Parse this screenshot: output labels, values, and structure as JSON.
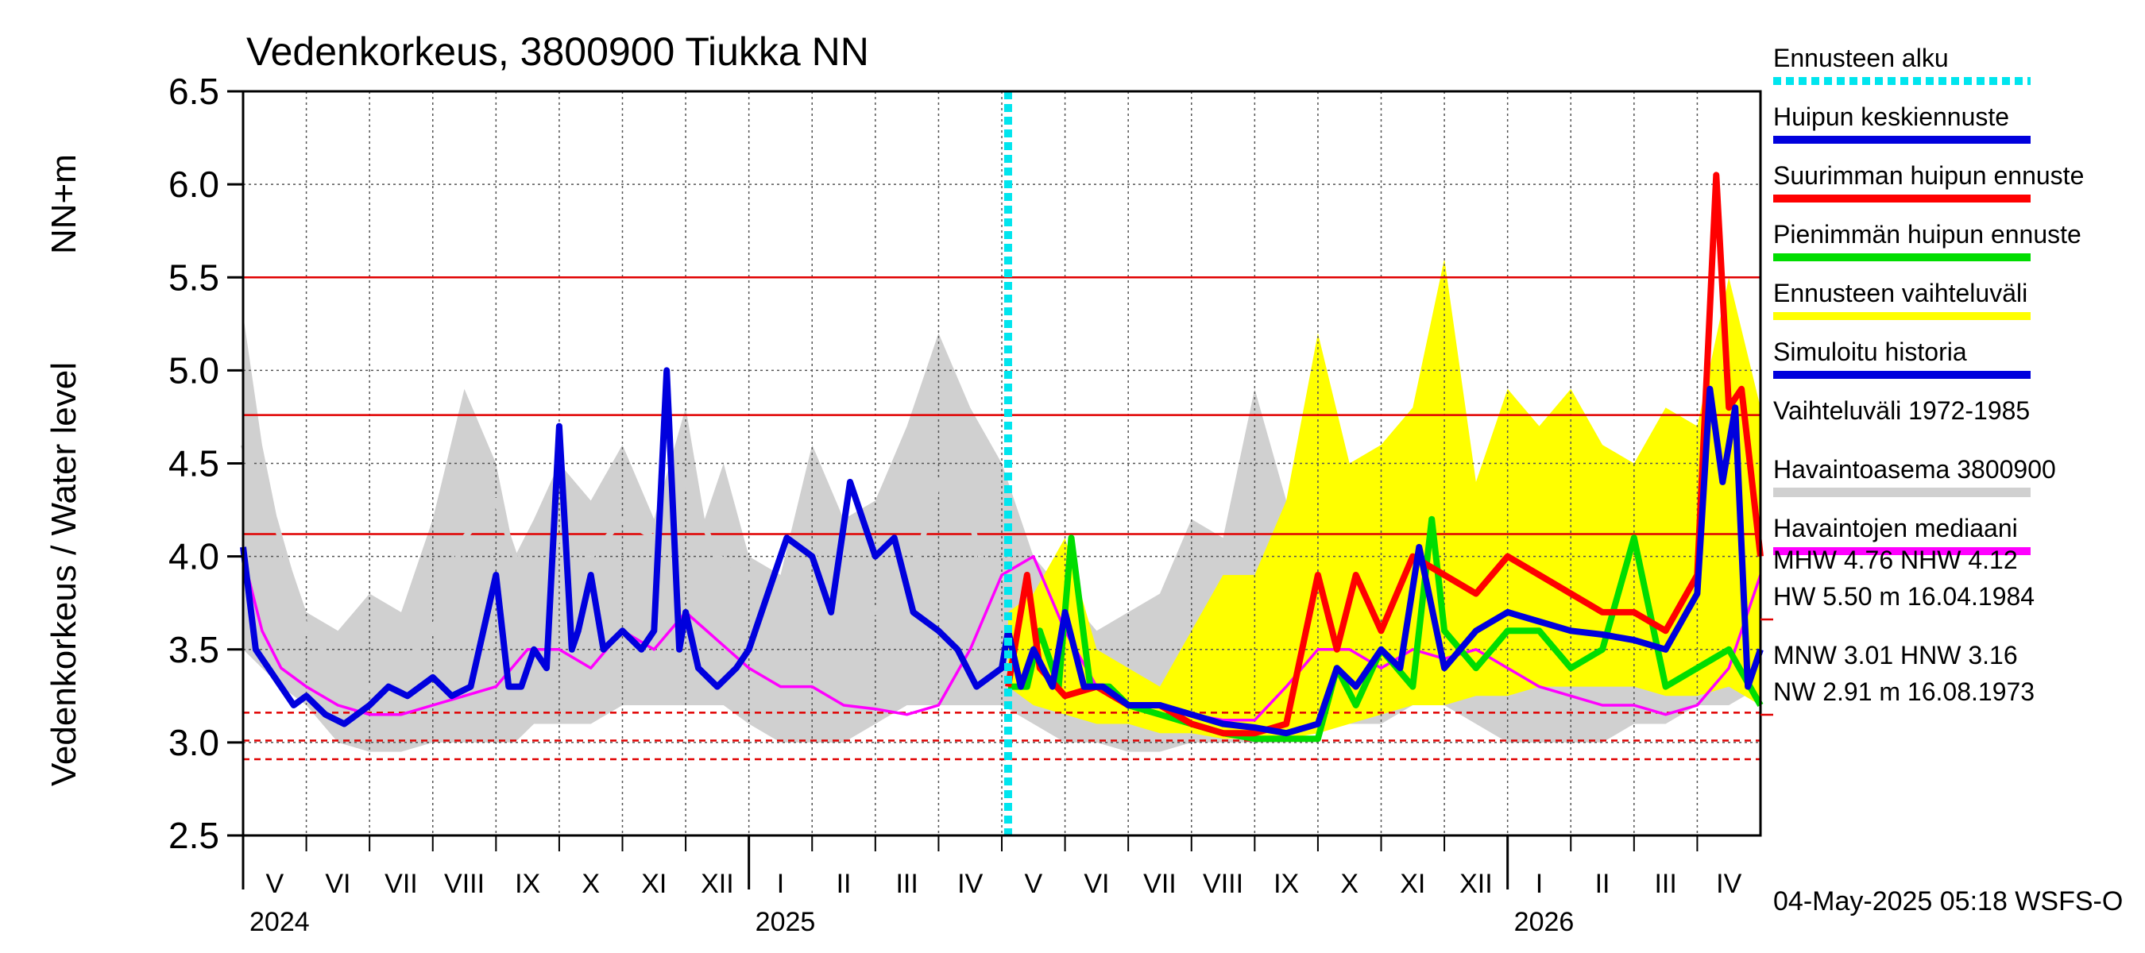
{
  "chart_data": {
    "type": "line",
    "title": "Vedenkorkeus, 3800900 Tiukka NN",
    "ylabel": "Vedenkorkeus / Water level",
    "yunit": "NN+m",
    "ylim": [
      2.5,
      6.5
    ],
    "yticks": [
      "6.5",
      "6.0",
      "5.5",
      "5.0",
      "4.5",
      "4.0",
      "3.5",
      "3.0",
      "2.5"
    ],
    "x_range_months": [
      0,
      24
    ],
    "months": [
      "V",
      "VI",
      "VII",
      "VIII",
      "IX",
      "X",
      "XI",
      "XII",
      "I",
      "II",
      "III",
      "IV",
      "V",
      "VI",
      "VII",
      "VIII",
      "IX",
      "X",
      "XI",
      "XII",
      "I",
      "II",
      "III",
      "IV"
    ],
    "years": [
      {
        "label": "2024",
        "month": 0
      },
      {
        "label": "2025",
        "month": 8
      },
      {
        "label": "2026",
        "month": 20
      }
    ],
    "forecast_start_month": 12.1,
    "reference_lines": [
      {
        "value": 5.5,
        "style": "solid"
      },
      {
        "value": 4.76,
        "style": "solid"
      },
      {
        "value": 4.12,
        "style": "solid"
      },
      {
        "value": 3.16,
        "style": "dashed"
      },
      {
        "value": 3.01,
        "style": "dashed"
      },
      {
        "value": 2.91,
        "style": "dashed"
      }
    ],
    "legend": [
      {
        "label": "Ennusteen alku",
        "color": "#00e5ee",
        "style": "dotted"
      },
      {
        "label": "Huipun keskiennuste",
        "color": "#0000dd",
        "style": "solid"
      },
      {
        "label": "Suurimman huipun ennuste",
        "color": "#ff0000",
        "style": "solid"
      },
      {
        "label": "Pienimmän huipun ennuste",
        "color": "#00dd00",
        "style": "solid"
      },
      {
        "label": "Ennusteen vaihteluväli",
        "color": "#ffff00",
        "style": "solid"
      },
      {
        "label": "Simuloitu historia",
        "color": "#0000dd",
        "style": "solid"
      },
      {
        "label": "Vaihteluväli 1972-1985",
        "color": "#d0d0d0",
        "style": "none"
      },
      {
        "label": " Havaintoasema 3800900",
        "color": "#d0d0d0",
        "style": "solid"
      },
      {
        "label": "Havaintojen mediaani",
        "color": "#ff00ff",
        "style": "solid"
      }
    ],
    "stats": [
      {
        "text": "MHW   4.76 NHW   4.12",
        "underline": false
      },
      {
        "text": "HW   5.50 m 16.04.1984",
        "underline": true
      },
      {
        "text": "MNW   3.01 HNW   3.16",
        "underline": false
      },
      {
        "text": "NW   2.91 m 16.08.1973",
        "underline": true
      }
    ],
    "timestamp": "04-May-2025 05:18 WSFS-O",
    "series": [
      {
        "name": "Vaihteluväli 1972-1985 (max)",
        "color": "#d0d0d0",
        "x": [
          0,
          0.3,
          0.6,
          1,
          1.5,
          2,
          2.5,
          3,
          3.5,
          4,
          4.3,
          4.6,
          5,
          5.5,
          6,
          6.5,
          7,
          7.3,
          7.6,
          8,
          8.5,
          9,
          9.5,
          10,
          10.5,
          11,
          11.5,
          12,
          12.5,
          13,
          13.5,
          14,
          14.5,
          15,
          15.5,
          16,
          16.5,
          17,
          17.5,
          18,
          18.5,
          19,
          19.5,
          20,
          20.5,
          21,
          21.5,
          22,
          22.5,
          23,
          23.5,
          24
        ],
        "values": [
          5.3,
          4.6,
          4.1,
          3.7,
          3.6,
          3.8,
          3.7,
          4.2,
          4.9,
          4.5,
          4.0,
          4.2,
          4.5,
          4.3,
          4.6,
          4.2,
          4.8,
          4.2,
          4.5,
          4.0,
          3.9,
          4.6,
          4.2,
          4.3,
          4.7,
          5.2,
          4.8,
          4.5,
          4.0,
          3.8,
          3.6,
          3.7,
          3.8,
          4.2,
          4.1,
          4.9,
          4.3,
          4.5,
          4.2,
          4.4,
          4.8,
          4.6,
          4.3,
          4.0,
          3.8,
          4.0,
          4.3,
          4.5,
          4.7,
          4.6,
          4.7,
          4.3
        ]
      },
      {
        "name": "Vaihteluväli 1972-1985 (min)",
        "color": "#d0d0d0",
        "x": [
          0,
          0.3,
          0.6,
          1,
          1.5,
          2,
          2.5,
          3,
          3.5,
          4,
          4.3,
          4.6,
          5,
          5.5,
          6,
          6.5,
          7,
          7.3,
          7.6,
          8,
          8.5,
          9,
          9.5,
          10,
          10.5,
          11,
          11.5,
          12,
          12.5,
          13,
          13.5,
          14,
          14.5,
          15,
          15.5,
          16,
          16.5,
          17,
          17.5,
          18,
          18.5,
          19,
          19.5,
          20,
          20.5,
          21,
          21.5,
          22,
          22.5,
          23,
          23.5,
          24
        ],
        "values": [
          3.5,
          3.4,
          3.3,
          3.2,
          3.0,
          2.95,
          2.95,
          3.0,
          3.0,
          3.0,
          3.0,
          3.1,
          3.1,
          3.1,
          3.2,
          3.2,
          3.2,
          3.2,
          3.2,
          3.1,
          3.0,
          3.0,
          3.0,
          3.1,
          3.2,
          3.2,
          3.2,
          3.2,
          3.1,
          3.0,
          3.0,
          2.95,
          2.95,
          3.0,
          3.0,
          3.0,
          3.0,
          3.1,
          3.1,
          3.1,
          3.2,
          3.2,
          3.1,
          3.0,
          3.0,
          3.0,
          3.0,
          3.1,
          3.1,
          3.2,
          3.2,
          3.3
        ]
      },
      {
        "name": "Ennusteen vaihteluväli (max)",
        "color": "#ffff00",
        "x": [
          12.1,
          12.5,
          13,
          13.5,
          14,
          14.5,
          15,
          15.5,
          16,
          16.5,
          17,
          17.5,
          18,
          18.5,
          19,
          19.5,
          20,
          20.5,
          21,
          21.5,
          22,
          22.5,
          23,
          23.5,
          24
        ],
        "values": [
          3.7,
          3.8,
          4.1,
          3.5,
          3.4,
          3.3,
          3.6,
          3.9,
          3.9,
          4.3,
          5.2,
          4.5,
          4.6,
          4.8,
          5.6,
          4.4,
          4.9,
          4.7,
          4.9,
          4.6,
          4.5,
          4.8,
          4.7,
          5.5,
          4.8
        ]
      },
      {
        "name": "Ennusteen vaihteluväli (min)",
        "color": "#ffff00",
        "x": [
          12.1,
          12.5,
          13,
          13.5,
          14,
          14.5,
          15,
          15.5,
          16,
          16.5,
          17,
          17.5,
          18,
          18.5,
          19,
          19.5,
          20,
          20.5,
          21,
          21.5,
          22,
          22.5,
          23,
          23.5,
          24
        ],
        "values": [
          3.3,
          3.2,
          3.15,
          3.1,
          3.1,
          3.05,
          3.05,
          3.02,
          3.02,
          3.02,
          3.05,
          3.1,
          3.15,
          3.2,
          3.2,
          3.25,
          3.25,
          3.3,
          3.3,
          3.3,
          3.3,
          3.25,
          3.25,
          3.3,
          3.2
        ]
      },
      {
        "name": "Havaintoasema 3800900",
        "color": "#d0d0d0",
        "x": [
          0,
          0.5,
          1,
          1.5,
          2,
          2.5,
          3,
          3.5,
          4,
          4.5,
          5,
          5.5,
          6,
          6.5,
          7,
          7.5,
          8,
          8.5,
          9,
          9.5,
          10,
          10.5,
          11,
          11.5,
          12
        ],
        "values": [
          4.6,
          4.2,
          3.6,
          3.4,
          3.3,
          3.4,
          3.6,
          4.1,
          4.3,
          3.8,
          4.1,
          4.0,
          4.2,
          4.1,
          4.4,
          4.0,
          3.9,
          3.8,
          4.0,
          3.9,
          3.7,
          3.8,
          4.4,
          4.2,
          3.6
        ]
      },
      {
        "name": "Havaintojen mediaani",
        "color": "#ff00ff",
        "x": [
          0,
          0.3,
          0.6,
          1,
          1.5,
          2,
          2.5,
          3,
          3.5,
          4,
          4.5,
          5,
          5.5,
          6,
          6.5,
          7,
          7.5,
          8,
          8.5,
          9,
          9.5,
          10,
          10.5,
          11,
          11.5,
          12,
          12.5,
          13,
          13.5,
          14,
          14.5,
          15,
          15.5,
          16,
          16.5,
          17,
          17.5,
          18,
          18.5,
          19,
          19.5,
          20,
          20.5,
          21,
          21.5,
          22,
          22.5,
          23,
          23.5,
          24
        ],
        "values": [
          4.0,
          3.6,
          3.4,
          3.3,
          3.2,
          3.15,
          3.15,
          3.2,
          3.25,
          3.3,
          3.5,
          3.5,
          3.4,
          3.6,
          3.5,
          3.7,
          3.55,
          3.4,
          3.3,
          3.3,
          3.2,
          3.18,
          3.15,
          3.2,
          3.5,
          3.9,
          4.0,
          3.6,
          3.3,
          3.2,
          3.15,
          3.15,
          3.12,
          3.12,
          3.3,
          3.5,
          3.5,
          3.4,
          3.5,
          3.45,
          3.5,
          3.4,
          3.3,
          3.25,
          3.2,
          3.2,
          3.15,
          3.2,
          3.4,
          3.9
        ]
      },
      {
        "name": "Simuloitu historia",
        "color": "#0000dd",
        "x": [
          0,
          0.2,
          0.5,
          0.8,
          1,
          1.3,
          1.6,
          2,
          2.3,
          2.6,
          3,
          3.3,
          3.6,
          4,
          4.2,
          4.4,
          4.6,
          4.8,
          5,
          5.2,
          5.3,
          5.5,
          5.7,
          6,
          6.3,
          6.5,
          6.7,
          6.9,
          7,
          7.2,
          7.5,
          7.8,
          8,
          8.3,
          8.6,
          9,
          9.3,
          9.6,
          10,
          10.3,
          10.6,
          11,
          11.3,
          11.6,
          12,
          12.1
        ],
        "values": [
          4.05,
          3.5,
          3.35,
          3.2,
          3.25,
          3.15,
          3.1,
          3.2,
          3.3,
          3.25,
          3.35,
          3.25,
          3.3,
          3.9,
          3.3,
          3.3,
          3.5,
          3.4,
          4.7,
          3.5,
          3.6,
          3.9,
          3.5,
          3.6,
          3.5,
          3.6,
          5.0,
          3.5,
          3.7,
          3.4,
          3.3,
          3.4,
          3.5,
          3.8,
          4.1,
          4.0,
          3.7,
          4.4,
          4.0,
          4.1,
          3.7,
          3.6,
          3.5,
          3.3,
          3.4,
          3.6
        ]
      },
      {
        "name": "Suurimman huipun ennuste",
        "color": "#ff0000",
        "x": [
          12.1,
          12.4,
          12.6,
          13,
          13.5,
          14,
          14.5,
          15,
          15.5,
          16,
          16.5,
          17,
          17.3,
          17.6,
          18,
          18.5,
          19,
          19.5,
          20,
          20.5,
          21,
          21.5,
          22,
          22.5,
          23,
          23.3,
          23.5,
          23.7,
          24
        ],
        "values": [
          3.3,
          3.9,
          3.4,
          3.25,
          3.3,
          3.2,
          3.2,
          3.1,
          3.05,
          3.05,
          3.1,
          3.9,
          3.5,
          3.9,
          3.6,
          4.0,
          3.9,
          3.8,
          4.0,
          3.9,
          3.8,
          3.7,
          3.7,
          3.6,
          3.9,
          6.05,
          4.8,
          4.9,
          4.0
        ]
      },
      {
        "name": "Pienimmän huipun ennuste",
        "color": "#00dd00",
        "x": [
          12.1,
          12.4,
          12.6,
          12.9,
          13.1,
          13.4,
          13.7,
          14,
          14.5,
          15,
          15.5,
          16,
          16.5,
          17,
          17.3,
          17.6,
          18,
          18.5,
          18.8,
          19,
          19.5,
          20,
          20.5,
          21,
          21.5,
          22,
          22.5,
          23,
          23.5,
          24
        ],
        "values": [
          3.3,
          3.3,
          3.6,
          3.3,
          4.1,
          3.3,
          3.3,
          3.2,
          3.15,
          3.1,
          3.05,
          3.02,
          3.02,
          3.02,
          3.4,
          3.2,
          3.5,
          3.3,
          4.2,
          3.6,
          3.4,
          3.6,
          3.6,
          3.4,
          3.5,
          4.1,
          3.3,
          3.4,
          3.5,
          3.2
        ]
      },
      {
        "name": "Huipun keskiennuste",
        "color": "#0000dd",
        "x": [
          12.1,
          12.3,
          12.5,
          12.8,
          13,
          13.3,
          13.6,
          14,
          14.5,
          15,
          15.5,
          16,
          16.5,
          17,
          17.3,
          17.6,
          18,
          18.3,
          18.6,
          19,
          19.5,
          20,
          20.5,
          21,
          21.5,
          22,
          22.5,
          23,
          23.2,
          23.4,
          23.6,
          23.8,
          24
        ],
        "values": [
          3.6,
          3.3,
          3.5,
          3.3,
          3.7,
          3.3,
          3.3,
          3.2,
          3.2,
          3.15,
          3.1,
          3.08,
          3.05,
          3.1,
          3.4,
          3.3,
          3.5,
          3.4,
          4.05,
          3.4,
          3.6,
          3.7,
          3.65,
          3.6,
          3.58,
          3.55,
          3.5,
          3.8,
          4.9,
          4.4,
          4.8,
          3.3,
          3.5
        ]
      }
    ]
  }
}
